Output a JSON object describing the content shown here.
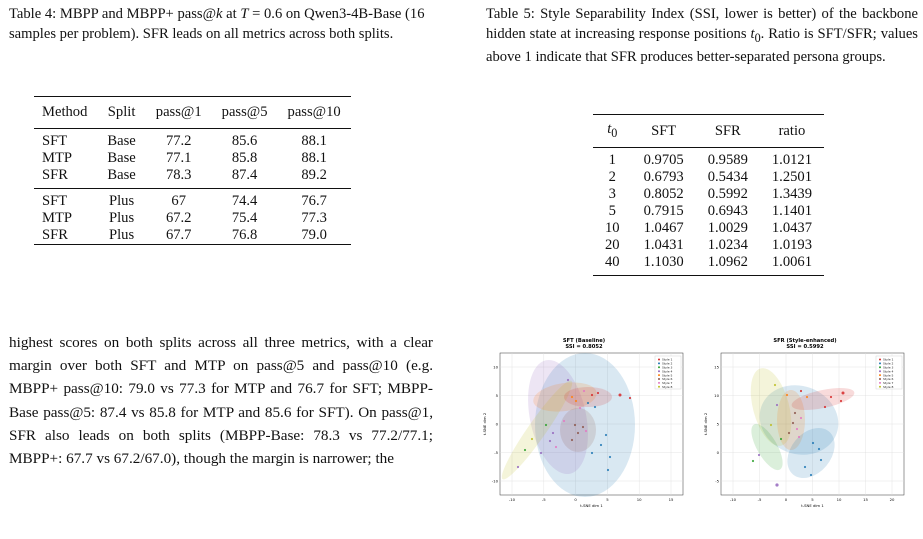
{
  "table4": {
    "caption": "Table 4: MBPP and MBPP+ pass@k at T = 0.6 on Qwen3-4B-Base (16 samples per problem). SFR leads on all metrics across both splits.",
    "headers": [
      "Method",
      "Split",
      "pass@1",
      "pass@5",
      "pass@10"
    ],
    "group1": [
      [
        "SFT",
        "Base",
        "77.2",
        "85.6",
        "88.1"
      ],
      [
        "MTP",
        "Base",
        "77.1",
        "85.8",
        "88.1"
      ],
      [
        "SFR",
        "Base",
        "78.3",
        "87.4",
        "89.2"
      ]
    ],
    "group2": [
      [
        "SFT",
        "Plus",
        "67",
        "74.4",
        "76.7"
      ],
      [
        "MTP",
        "Plus",
        "67.2",
        "75.4",
        "77.3"
      ],
      [
        "SFR",
        "Plus",
        "67.7",
        "76.8",
        "79.0"
      ]
    ]
  },
  "table5": {
    "caption": "Table 5: Style Separability Index (SSI, lower is better) of the backbone hidden state at increasing response positions t0. Ratio is SFT/SFR; values above 1 indicate that SFR produces better-separated persona groups.",
    "headers": [
      "t0",
      "SFT",
      "SFR",
      "ratio"
    ],
    "rows": [
      [
        "1",
        "0.9705",
        "0.9589",
        "1.0121"
      ],
      [
        "2",
        "0.6793",
        "0.5434",
        "1.2501"
      ],
      [
        "3",
        "0.8052",
        "0.5992",
        "1.3439"
      ],
      [
        "5",
        "0.7915",
        "0.6943",
        "1.1401"
      ],
      [
        "10",
        "1.0467",
        "1.0029",
        "1.0437"
      ],
      [
        "20",
        "1.0431",
        "1.0234",
        "1.0193"
      ],
      [
        "40",
        "1.1030",
        "1.0962",
        "1.0061"
      ]
    ]
  },
  "body_text": "highest scores on both splits across all three metrics, with a clear margin over both SFT and MTP on pass@5 and pass@10 (e.g. MBPP+ pass@10: 79.0 vs 77.3 for MTP and 76.7 for SFT; MBPP-Base pass@5: 87.4 vs 85.8 for MTP and 85.6 for SFT). On pass@1, SFR also leads on both splits (MBPP-Base: 78.3 vs 77.2/77.1; MBPP+: 67.7 vs 67.2/67.0), though the margin is narrower; the",
  "figure": {
    "panels": [
      {
        "title": "SFT (Baseline)",
        "subtitle": "SSI = 0.8052",
        "xlabel": "t-SNE dim 1",
        "ylabel": "t-SNE dim 2",
        "xticks": [
          "-10",
          "-5",
          "0",
          "5",
          "10",
          "15"
        ],
        "yticks": [
          "10",
          "5",
          "0",
          "-5",
          "-10"
        ]
      },
      {
        "title": "SFR (Style-enhanced)",
        "subtitle": "SSI = 0.5992",
        "xlabel": "t-SNE dim 1",
        "ylabel": "t-SNE dim 2",
        "xticks": [
          "-10",
          "-5",
          "0",
          "5",
          "10",
          "15",
          "20"
        ],
        "yticks": [
          "15",
          "10",
          "5",
          "0",
          "-5"
        ]
      }
    ],
    "legend": [
      "Style 1",
      "Style 2",
      "Style 3",
      "Style 4",
      "Style 5",
      "Style 6",
      "Style 7",
      "Style 8"
    ],
    "colors": [
      "#d62728",
      "#1f77b4",
      "#2ca02c",
      "#9467bd",
      "#ff7f0e",
      "#8c564b",
      "#e377c2",
      "#bcbd22"
    ]
  }
}
